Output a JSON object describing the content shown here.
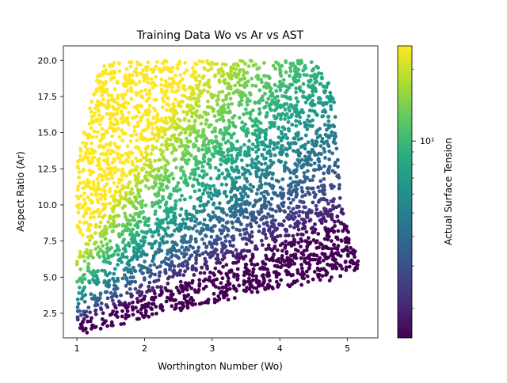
{
  "chart_data": {
    "type": "scatter",
    "title": "Training Data Wo vs Ar vs AST",
    "xlabel": "Worthington Number (Wo)",
    "ylabel": "Aspect Ratio (Ar)",
    "xlim": [
      0.8,
      5.45
    ],
    "ylim": [
      0.8,
      21.0
    ],
    "x_ticks": [
      1,
      2,
      3,
      4,
      5
    ],
    "x_tick_labels": [
      "1",
      "2",
      "3",
      "4",
      "5"
    ],
    "y_ticks": [
      2.5,
      5.0,
      7.5,
      10.0,
      12.5,
      15.0,
      17.5,
      20.0
    ],
    "y_tick_labels": [
      "2.5",
      "5.0",
      "7.5",
      "10.0",
      "12.5",
      "15.0",
      "17.5",
      "20.0"
    ],
    "grid": false,
    "colorbar": {
      "label": "Actual Surface Tension",
      "scale": "log",
      "colormap": "viridis",
      "major_tick_label": "10¹",
      "major_tick_value": 10,
      "range": [
        1.5,
        25
      ]
    },
    "color_relation": "AST ≈ 0.5 · Ar² / Wo² (approximate trend)",
    "approximate_point_count": 4000,
    "data_region": {
      "x_range": [
        1.0,
        5.2
      ],
      "y_range": [
        1.0,
        20.0
      ],
      "lower_boundary": [
        [
          1.0,
          1.0
        ],
        [
          2.0,
          2.1
        ],
        [
          3.0,
          3.2
        ],
        [
          4.0,
          4.2
        ],
        [
          4.8,
          4.8
        ],
        [
          5.2,
          5.5
        ]
      ],
      "upper_boundary_left": [
        [
          1.0,
          13.0
        ],
        [
          1.35,
          19.8
        ],
        [
          2.2,
          20.0
        ],
        [
          4.5,
          20.0
        ],
        [
          4.8,
          18.0
        ],
        [
          4.9,
          10.0
        ],
        [
          5.2,
          5.5
        ]
      ]
    },
    "sample_points": [
      {
        "x": 1.0,
        "y": 1.0,
        "c": 0.5
      },
      {
        "x": 1.05,
        "y": 2.8,
        "c": 3.6
      },
      {
        "x": 1.0,
        "y": 7.0,
        "c": 24
      },
      {
        "x": 1.05,
        "y": 13.0,
        "c": 16
      },
      {
        "x": 1.3,
        "y": 19.5,
        "c": 22
      },
      {
        "x": 2.0,
        "y": 20.0,
        "c": 18
      },
      {
        "x": 2.2,
        "y": 2.5,
        "c": 0.6
      },
      {
        "x": 3.0,
        "y": 10.0,
        "c": 5.6
      },
      {
        "x": 3.5,
        "y": 20.0,
        "c": 16
      },
      {
        "x": 4.0,
        "y": 4.2,
        "c": 0.6
      },
      {
        "x": 4.5,
        "y": 19.8,
        "c": 9.7
      },
      {
        "x": 4.8,
        "y": 10.0,
        "c": 2.2
      },
      {
        "x": 5.2,
        "y": 5.5,
        "c": 0.6
      }
    ]
  }
}
